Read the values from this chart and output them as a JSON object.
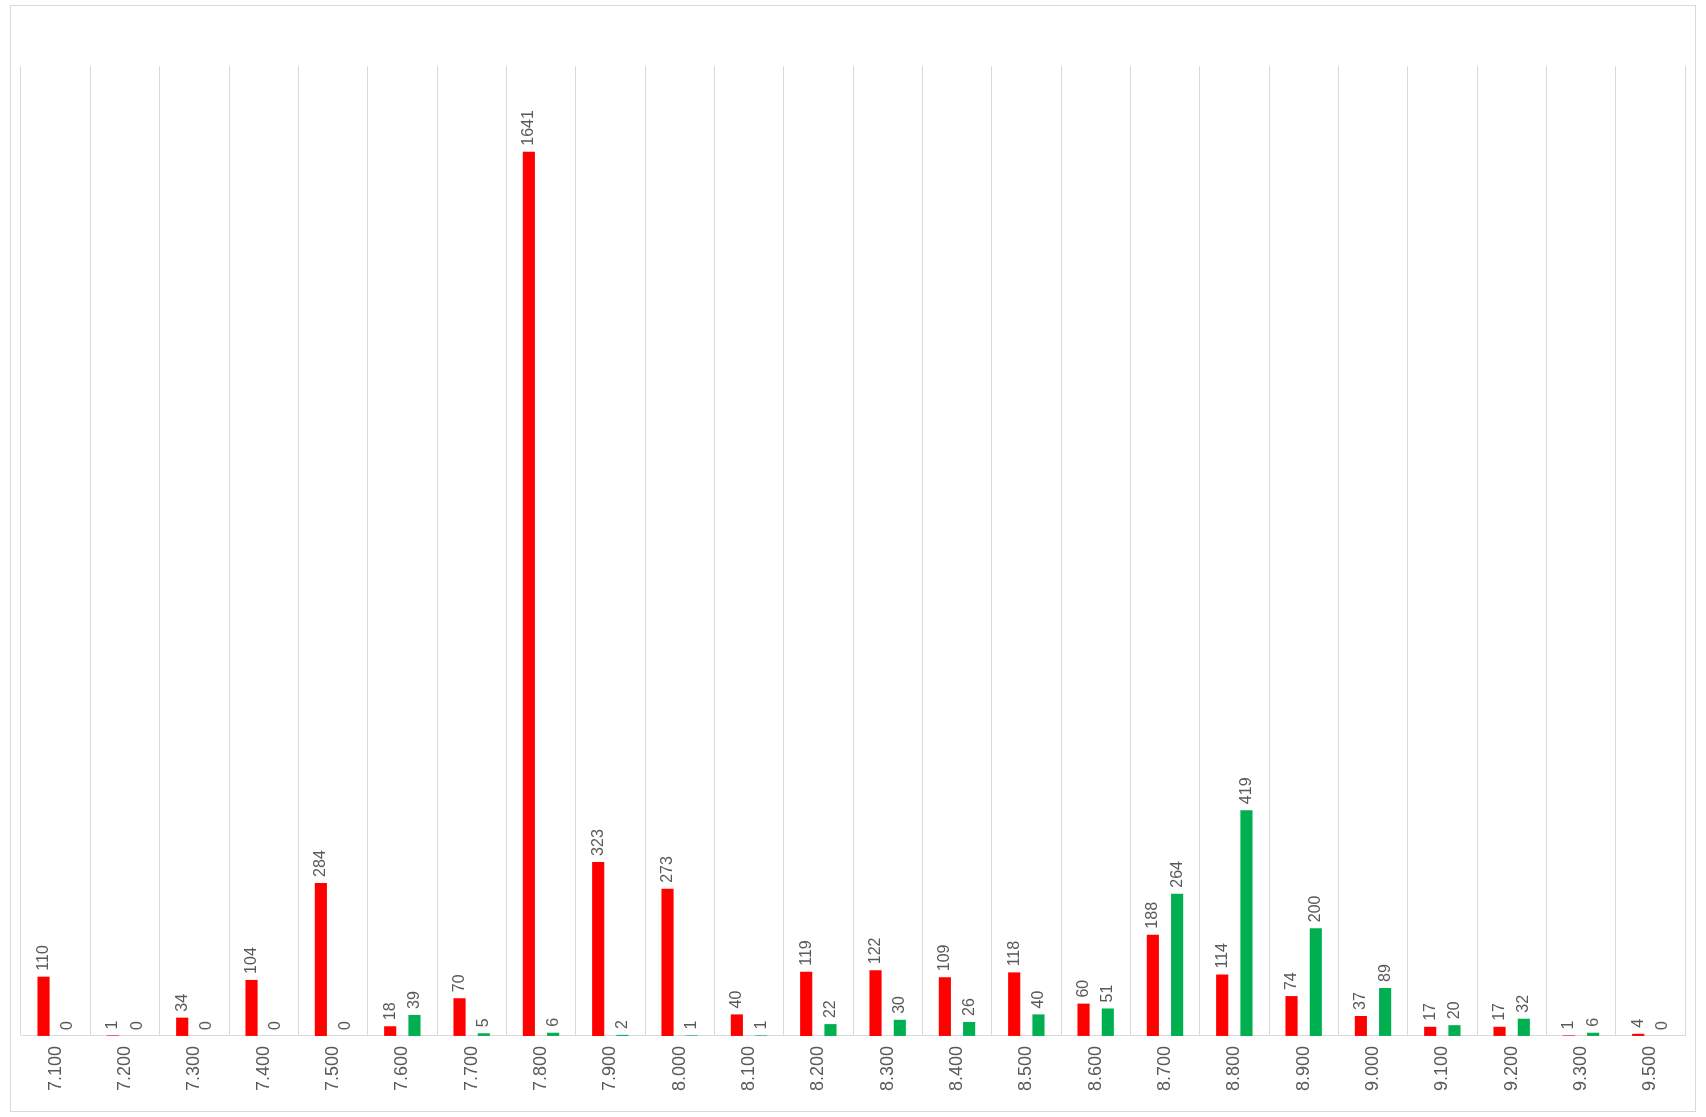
{
  "chart_data": {
    "type": "bar",
    "categories": [
      "7.100",
      "7.200",
      "7.300",
      "7.400",
      "7.500",
      "7.600",
      "7.700",
      "7.800",
      "7.900",
      "8.000",
      "8.100",
      "8.200",
      "8.300",
      "8.400",
      "8.500",
      "8.600",
      "8.700",
      "8.800",
      "8.900",
      "9.000",
      "9.100",
      "9.200",
      "9.300",
      "9.500"
    ],
    "series": [
      {
        "color": "#ff0000",
        "values": [
          110,
          1,
          34,
          104,
          284,
          18,
          70,
          1641,
          323,
          273,
          40,
          119,
          122,
          109,
          118,
          60,
          188,
          114,
          74,
          37,
          17,
          17,
          1,
          4
        ]
      },
      {
        "color": "#00b050",
        "values": [
          0,
          0,
          0,
          0,
          0,
          39,
          5,
          6,
          2,
          1,
          1,
          22,
          30,
          26,
          40,
          51,
          264,
          419,
          200,
          89,
          20,
          32,
          6,
          0
        ]
      }
    ],
    "data_labels": true,
    "grid": "x",
    "legend": false
  }
}
